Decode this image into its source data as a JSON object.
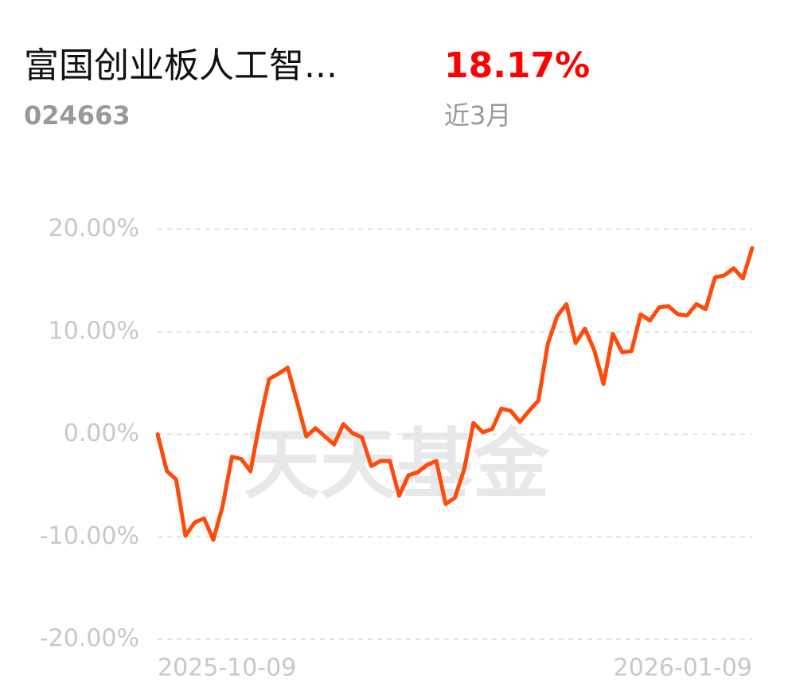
{
  "header": {
    "fund_name": "富国创业板人工智...",
    "fund_code": "024663",
    "return": "18.17%",
    "period": "近3月"
  },
  "chart_data": {
    "type": "line",
    "watermark": "天天基金",
    "categories": [
      "2025-10-09",
      null,
      null,
      null,
      null,
      null,
      null,
      null,
      null,
      null,
      null,
      null,
      null,
      null,
      null,
      null,
      null,
      null,
      null,
      null,
      null,
      null,
      null,
      null,
      null,
      null,
      null,
      null,
      null,
      null,
      null,
      null,
      null,
      null,
      null,
      null,
      null,
      null,
      null,
      null,
      null,
      null,
      null,
      null,
      null,
      null,
      null,
      null,
      null,
      null,
      null,
      null,
      null,
      null,
      null,
      null,
      null,
      null,
      null,
      null,
      null,
      null,
      null,
      null,
      "2026-01-09"
    ],
    "series": [
      {
        "name": null,
        "color": "#ff4a0a",
        "values": [
          0,
          -3.6,
          -4.4,
          -9.9,
          -8.6,
          -8.2,
          -10.3,
          -7.0,
          -2.2,
          -2.4,
          -3.6,
          1.2,
          5.4,
          5.9,
          6.5,
          3.2,
          -0.2,
          0.6,
          -0.2,
          -1.0,
          1.0,
          0.1,
          -0.3,
          -3.1,
          -2.6,
          -2.6,
          -6.0,
          -4.0,
          -3.7,
          -3.0,
          -2.6,
          -6.8,
          -6.2,
          -3.4,
          1.1,
          0.2,
          0.5,
          2.5,
          2.3,
          1.2,
          2.3,
          3.3,
          8.8,
          11.5,
          12.7,
          8.9,
          10.3,
          8.2,
          4.9,
          9.8,
          8.0,
          8.1,
          11.7,
          11.1,
          12.4,
          12.5,
          11.7,
          11.6,
          12.7,
          12.2,
          15.3,
          15.5,
          16.2,
          15.2,
          18.17
        ]
      }
    ],
    "ylim": [
      -20,
      20
    ],
    "yticks": [
      {
        "value": -20,
        "label": "-20.00%"
      },
      {
        "value": -10,
        "label": "-10.00%"
      },
      {
        "value": 0,
        "label": "0.00%"
      },
      {
        "value": 10,
        "label": "10.00%"
      },
      {
        "value": 20,
        "label": "20.00%"
      }
    ],
    "grid": true
  }
}
